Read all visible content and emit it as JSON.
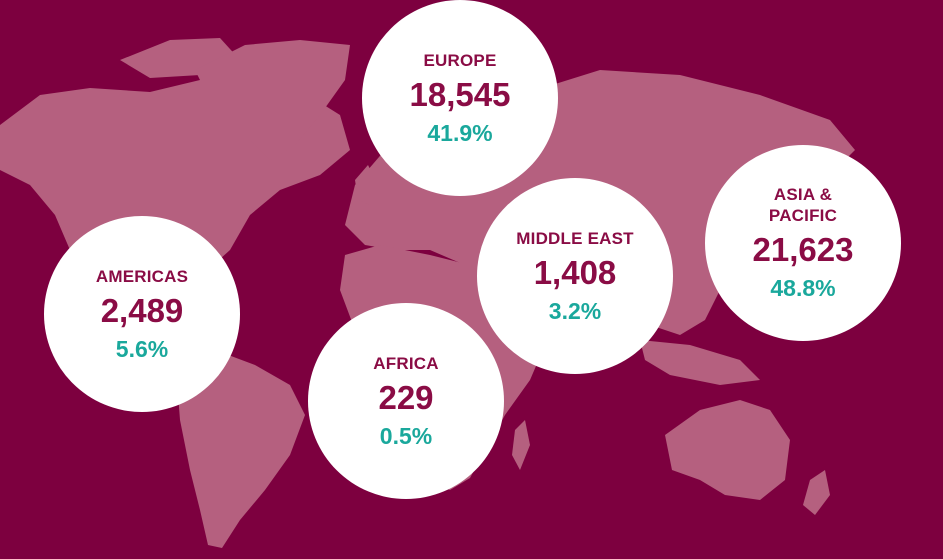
{
  "colors": {
    "background": "#7d003f",
    "land": "#b5607f",
    "bubble": "#ffffff",
    "title": "#8a0c45",
    "percent": "#1aa89c"
  },
  "regions": {
    "europe": {
      "name": "EUROPE",
      "value": "18,545",
      "percent": "41.9%"
    },
    "americas": {
      "name": "AMERICAS",
      "value": "2,489",
      "percent": "5.6%"
    },
    "middle_east": {
      "name": "MIDDLE EAST",
      "value": "1,408",
      "percent": "3.2%"
    },
    "asia_pacific": {
      "name": "ASIA & PACIFIC",
      "value": "21,623",
      "percent": "48.8%"
    },
    "africa": {
      "name": "AFRICA",
      "value": "229",
      "percent": "0.5%"
    }
  }
}
